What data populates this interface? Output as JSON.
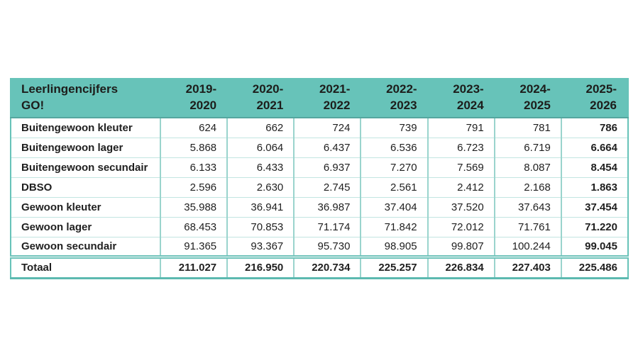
{
  "table": {
    "title_header": "Leerlingencijfers\nGO!",
    "columns": [
      "2019-\n2020",
      "2020-\n2021",
      "2021-\n2022",
      "2022-\n2023",
      "2023-\n2024",
      "2024-\n2025",
      "2025-\n2026"
    ],
    "rows": [
      {
        "label": "Buitengewoon kleuter",
        "values": [
          "624",
          "662",
          "724",
          "739",
          "791",
          "781",
          "786"
        ]
      },
      {
        "label": "Buitengewoon lager",
        "values": [
          "5.868",
          "6.064",
          "6.437",
          "6.536",
          "6.723",
          "6.719",
          "6.664"
        ]
      },
      {
        "label": "Buitengewoon secundair",
        "values": [
          "6.133",
          "6.433",
          "6.937",
          "7.270",
          "7.569",
          "8.087",
          "8.454"
        ]
      },
      {
        "label": "DBSO",
        "values": [
          "2.596",
          "2.630",
          "2.745",
          "2.561",
          "2.412",
          "2.168",
          "1.863"
        ]
      },
      {
        "label": "Gewoon kleuter",
        "values": [
          "35.988",
          "36.941",
          "36.987",
          "37.404",
          "37.520",
          "37.643",
          "37.454"
        ]
      },
      {
        "label": "Gewoon lager",
        "values": [
          "68.453",
          "70.853",
          "71.174",
          "71.842",
          "72.012",
          "71.761",
          "71.220"
        ]
      },
      {
        "label": "Gewoon secundair",
        "values": [
          "91.365",
          "93.367",
          "95.730",
          "98.905",
          "99.807",
          "100.244",
          "99.045"
        ]
      }
    ],
    "total_row": {
      "label": "Totaal",
      "values": [
        "211.027",
        "216.950",
        "220.734",
        "225.257",
        "226.834",
        "227.403",
        "225.486"
      ]
    },
    "colors": {
      "header_bg": "#67c3b9",
      "header_text": "#1d1d1b",
      "body_text": "#1f1f1f",
      "border_outer": "#67c3b9",
      "border_vertical": "#9ad4cd",
      "border_horizontal": "#c2e5e1",
      "border_bottom": "#5cb9b0"
    }
  },
  "chart_data": {
    "type": "table",
    "title": "Leerlingencijfers GO!",
    "categories": [
      "2019-2020",
      "2020-2021",
      "2021-2022",
      "2022-2023",
      "2023-2024",
      "2024-2025",
      "2025-2026"
    ],
    "series": [
      {
        "name": "Buitengewoon kleuter",
        "values": [
          624,
          662,
          724,
          739,
          791,
          781,
          786
        ]
      },
      {
        "name": "Buitengewoon lager",
        "values": [
          5868,
          6064,
          6437,
          6536,
          6723,
          6719,
          6664
        ]
      },
      {
        "name": "Buitengewoon secundair",
        "values": [
          6133,
          6433,
          6937,
          7270,
          7569,
          8087,
          8454
        ]
      },
      {
        "name": "DBSO",
        "values": [
          2596,
          2630,
          2745,
          2561,
          2412,
          2168,
          1863
        ]
      },
      {
        "name": "Gewoon kleuter",
        "values": [
          35988,
          36941,
          36987,
          37404,
          37520,
          37643,
          37454
        ]
      },
      {
        "name": "Gewoon lager",
        "values": [
          68453,
          70853,
          71174,
          71842,
          72012,
          71761,
          71220
        ]
      },
      {
        "name": "Gewoon secundair",
        "values": [
          91365,
          93367,
          95730,
          98905,
          99807,
          100244,
          99045
        ]
      },
      {
        "name": "Totaal",
        "values": [
          211027,
          216950,
          220734,
          225257,
          226834,
          227403,
          225486
        ]
      }
    ],
    "notes": "Numbers use Dutch thousands separator (.). Last column (2025-2026) and Totaal row rendered bold."
  }
}
